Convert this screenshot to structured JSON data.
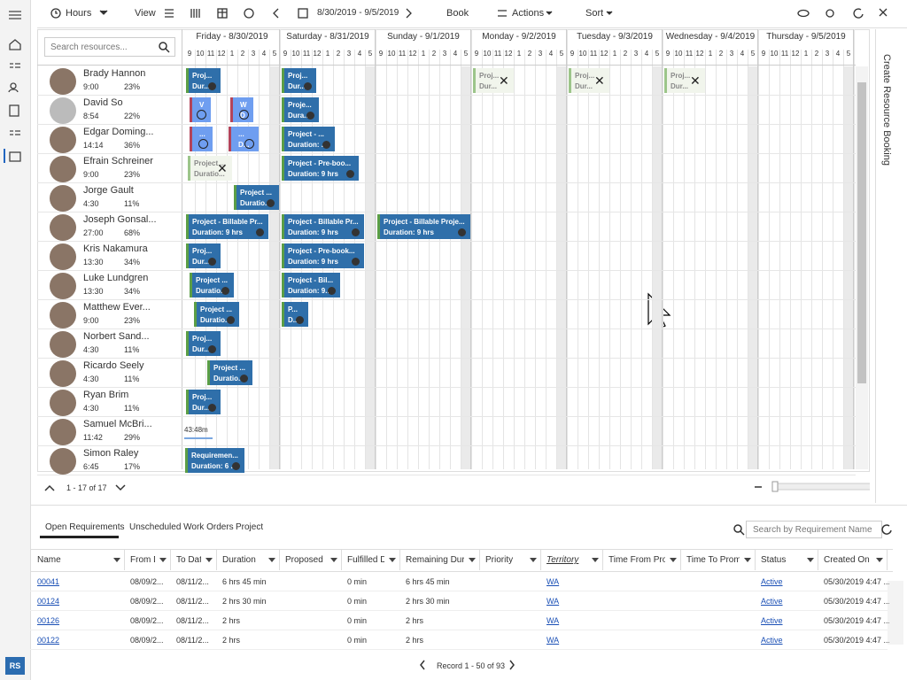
{
  "toolbar": {
    "hours": "Hours",
    "view": "View",
    "date_range": "8/30/2019 - 9/5/2019",
    "book": "Book",
    "actions": "Actions",
    "sort": "Sort"
  },
  "search_resources": "Search resources...",
  "days": [
    "Friday - 8/30/2019",
    "Saturday - 8/31/2019",
    "Sunday - 9/1/2019",
    "Monday - 9/2/2019",
    "Tuesday - 9/3/2019",
    "Wednesday - 9/4/2019",
    "Thursday - 9/5/2019"
  ],
  "hour_labels": [
    "9",
    "10",
    "11",
    "12",
    "1",
    "2",
    "3",
    "4",
    "5"
  ],
  "resources": [
    {
      "name": "Brady Hannon",
      "hours": "9:00",
      "utilization": "23%",
      "bookings": [
        [
          "Proj...",
          "Dur..."
        ],
        [
          "Proj...",
          "Dur..."
        ],
        [
          "Proj...",
          "Dur..."
        ],
        [
          "Proj...",
          "Dur..."
        ],
        [
          "Proj...",
          "Dur..."
        ]
      ]
    },
    {
      "name": "David So",
      "hours": "8:54",
      "utilization": "22%",
      "bookings": [
        [
          "V"
        ],
        [
          "W",
          "D"
        ],
        [
          "Proje...",
          "Dura..."
        ]
      ]
    },
    {
      "name": "Edgar Doming...",
      "hours": "14:14",
      "utilization": "36%",
      "bookings": [
        [
          "..."
        ],
        [
          "...",
          "D..."
        ],
        [
          "Project - ...",
          "Duration: ..."
        ]
      ]
    },
    {
      "name": "Efrain Schreiner",
      "hours": "9:00",
      "utilization": "23%",
      "bookings": [
        [
          "Project ...",
          "Duratio..."
        ],
        [
          "Project - Pre-boo...",
          "Duration: 9 hrs"
        ]
      ]
    },
    {
      "name": "Jorge Gault",
      "hours": "4:30",
      "utilization": "11%",
      "bookings": [
        [
          "Project ...",
          "Duratio..."
        ]
      ]
    },
    {
      "name": "Joseph Gonsal...",
      "hours": "27:00",
      "utilization": "68%",
      "bookings": [
        [
          "Project - Billable Pr...",
          "Duration: 9 hrs"
        ],
        [
          "Project - Billable Pr...",
          "Duration: 9 hrs"
        ],
        [
          "Project - Billable Proje...",
          "Duration: 9 hrs"
        ]
      ]
    },
    {
      "name": "Kris Nakamura",
      "hours": "13:30",
      "utilization": "34%",
      "bookings": [
        [
          "Proj...",
          "Dur..."
        ],
        [
          "Project - Pre-book...",
          "Duration: 9 hrs"
        ]
      ]
    },
    {
      "name": "Luke Lundgren",
      "hours": "13:30",
      "utilization": "34%",
      "bookings": [
        [
          "Project ...",
          "Duratio..."
        ],
        [
          "Project - Bil...",
          "Duration: 9..."
        ]
      ]
    },
    {
      "name": "Matthew Ever...",
      "hours": "9:00",
      "utilization": "23%",
      "bookings": [
        [
          "Project ...",
          "Duratio..."
        ],
        [
          "P...",
          "D..."
        ]
      ]
    },
    {
      "name": "Norbert Sand...",
      "hours": "4:30",
      "utilization": "11%",
      "bookings": [
        [
          "Proj...",
          "Dur..."
        ]
      ]
    },
    {
      "name": "Ricardo Seely",
      "hours": "4:30",
      "utilization": "11%",
      "bookings": [
        [
          "Project ...",
          "Duratio..."
        ]
      ]
    },
    {
      "name": "Ryan Brim",
      "hours": "4:30",
      "utilization": "11%",
      "bookings": [
        [
          "Proj...",
          "Dur..."
        ]
      ]
    },
    {
      "name": "Samuel McBri...",
      "hours": "11:42",
      "utilization": "29%",
      "bookings": [
        [
          "43:48m"
        ]
      ]
    },
    {
      "name": "Simon Raley",
      "hours": "6:45",
      "utilization": "17%",
      "bookings": [
        [
          "Requiremen...",
          "Duration: 6 ..."
        ]
      ]
    }
  ],
  "pager": "1 - 17 of 17",
  "tabs": [
    "Open Requirements",
    "Unscheduled Work Orders",
    "Project"
  ],
  "search_requirements": "Search by Requirement Name",
  "table": {
    "columns": [
      "Name",
      "From D",
      "To Dat",
      "Duration",
      "Proposed D",
      "Fulfilled Du",
      "Remaining Dur",
      "Priority",
      "Territory",
      "Time From Pro...",
      "Time To Promis",
      "Status",
      "Created On"
    ],
    "rows": [
      [
        "00041",
        "08/09/2...",
        "08/11/2...",
        "6 hrs 45 min",
        null,
        "0 min",
        "6 hrs 45 min",
        null,
        "WA",
        null,
        null,
        "Active",
        "05/30/2019 4:47 ..."
      ],
      [
        "00124",
        "08/09/2...",
        "08/11/2...",
        "2 hrs 30 min",
        null,
        "0 min",
        "2 hrs 30 min",
        null,
        "WA",
        null,
        null,
        "Active",
        "05/30/2019 4:47 ..."
      ],
      [
        "00126",
        "08/09/2...",
        "08/11/2...",
        "2 hrs",
        null,
        "0 min",
        "2 hrs",
        null,
        "WA",
        null,
        null,
        "Active",
        "05/30/2019 4:47 ..."
      ],
      [
        "00122",
        "08/09/2...",
        "08/11/2...",
        "2 hrs",
        null,
        "0 min",
        "2 hrs",
        null,
        "WA",
        null,
        null,
        "Active",
        "05/30/2019 4:47 ..."
      ]
    ]
  },
  "record_info": "Record 1 - 50 of 93",
  "side_panel": "Create Resource Booking",
  "user_initials": "RS"
}
